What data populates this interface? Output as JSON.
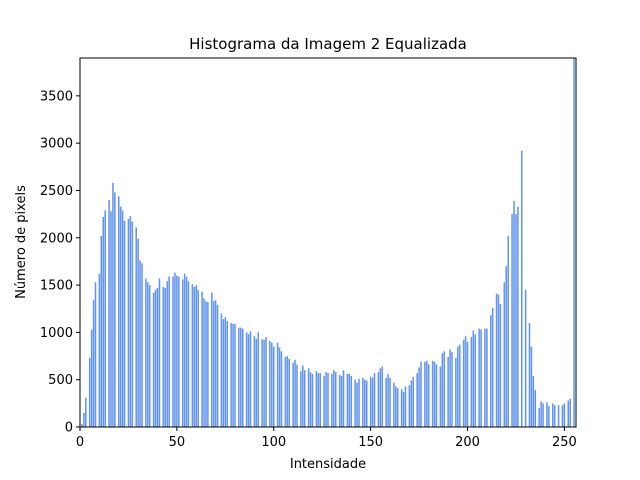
{
  "chart_data": {
    "type": "bar",
    "title": "Histograma da Imagem 2 Equalizada",
    "x_label": "Intensidade",
    "y_label": "Número de pixels",
    "color": "#6495ed",
    "x": [
      0,
      1,
      2,
      3,
      4,
      5,
      6,
      7,
      8,
      9,
      10,
      11,
      12,
      13,
      14,
      15,
      16,
      17,
      18,
      19,
      20,
      21,
      22,
      23,
      24,
      25,
      26,
      27,
      28,
      29,
      30,
      31,
      32,
      33,
      34,
      35,
      36,
      37,
      38,
      39,
      40,
      41,
      42,
      43,
      44,
      45,
      46,
      47,
      48,
      49,
      50,
      51,
      52,
      53,
      54,
      55,
      56,
      57,
      58,
      59,
      60,
      61,
      62,
      63,
      64,
      65,
      66,
      67,
      68,
      69,
      70,
      71,
      72,
      73,
      74,
      75,
      76,
      77,
      78,
      79,
      80,
      81,
      82,
      83,
      84,
      85,
      86,
      87,
      88,
      89,
      90,
      91,
      92,
      93,
      94,
      95,
      96,
      97,
      98,
      99,
      100,
      101,
      102,
      103,
      104,
      105,
      106,
      107,
      108,
      109,
      110,
      111,
      112,
      113,
      114,
      115,
      116,
      117,
      118,
      119,
      120,
      121,
      122,
      123,
      124,
      125,
      126,
      127,
      128,
      129,
      130,
      131,
      132,
      133,
      134,
      135,
      136,
      137,
      138,
      139,
      140,
      141,
      142,
      143,
      144,
      145,
      146,
      147,
      148,
      149,
      150,
      151,
      152,
      153,
      154,
      155,
      156,
      157,
      158,
      159,
      160,
      161,
      162,
      163,
      164,
      165,
      166,
      167,
      168,
      169,
      170,
      171,
      172,
      173,
      174,
      175,
      176,
      177,
      178,
      179,
      180,
      181,
      182,
      183,
      184,
      185,
      186,
      187,
      188,
      189,
      190,
      191,
      192,
      193,
      194,
      195,
      196,
      197,
      198,
      199,
      200,
      201,
      202,
      203,
      204,
      205,
      206,
      207,
      208,
      209,
      210,
      211,
      212,
      213,
      214,
      215,
      216,
      217,
      218,
      219,
      220,
      221,
      222,
      223,
      224,
      225,
      226,
      227,
      228,
      229,
      230,
      231,
      232,
      233,
      234,
      235,
      236,
      237,
      238,
      239,
      240,
      241,
      242,
      243,
      244,
      245,
      246,
      247,
      248,
      249,
      250,
      251,
      252,
      253,
      254,
      255
    ],
    "values": [
      0,
      30,
      150,
      310,
      0,
      730,
      1030,
      1340,
      1530,
      0,
      1620,
      2020,
      2220,
      2290,
      0,
      2400,
      2280,
      2580,
      2480,
      0,
      2440,
      2330,
      2290,
      2180,
      0,
      2200,
      2230,
      2170,
      0,
      2110,
      1990,
      1760,
      1730,
      0,
      1570,
      1530,
      1500,
      0,
      1420,
      1450,
      1470,
      1570,
      0,
      1480,
      1470,
      1540,
      1590,
      0,
      1590,
      1630,
      1600,
      1590,
      0,
      1560,
      1620,
      1590,
      1540,
      0,
      1510,
      1480,
      1500,
      1450,
      0,
      1430,
      1360,
      1330,
      1320,
      0,
      1420,
      1330,
      1340,
      1290,
      0,
      1200,
      1140,
      1160,
      1120,
      0,
      1100,
      1090,
      1090,
      0,
      1050,
      1050,
      1040,
      0,
      1000,
      980,
      1010,
      0,
      960,
      930,
      1000,
      0,
      930,
      920,
      950,
      0,
      910,
      890,
      850,
      0,
      890,
      840,
      800,
      0,
      740,
      750,
      720,
      0,
      680,
      710,
      660,
      0,
      590,
      650,
      600,
      0,
      620,
      580,
      560,
      0,
      590,
      570,
      570,
      0,
      540,
      580,
      570,
      0,
      560,
      600,
      580,
      0,
      550,
      540,
      600,
      0,
      560,
      560,
      540,
      0,
      500,
      470,
      510,
      0,
      520,
      500,
      490,
      0,
      530,
      520,
      570,
      0,
      580,
      620,
      640,
      0,
      520,
      560,
      520,
      0,
      470,
      430,
      410,
      0,
      400,
      370,
      430,
      0,
      440,
      490,
      530,
      0,
      570,
      630,
      690,
      0,
      690,
      700,
      660,
      0,
      700,
      690,
      660,
      0,
      640,
      780,
      800,
      0,
      740,
      820,
      790,
      0,
      730,
      850,
      870,
      0,
      920,
      960,
      900,
      0,
      950,
      1020,
      980,
      0,
      1040,
      1030,
      0,
      1040,
      1040,
      0,
      1180,
      1260,
      0,
      1410,
      1400,
      1300,
      0,
      1530,
      1700,
      2020,
      0,
      2250,
      2390,
      2250,
      2330,
      0,
      2920,
      0,
      1450,
      0,
      1100,
      850,
      540,
      390,
      0,
      200,
      270,
      250,
      0,
      260,
      220,
      0,
      250,
      230,
      0,
      230,
      0,
      230,
      250,
      0,
      280,
      300,
      0,
      3900
    ],
    "xlim": [
      0,
      256
    ],
    "xticks": [
      0,
      50,
      100,
      150,
      200,
      250
    ],
    "ylim": [
      0,
      3900
    ],
    "yticks": [
      0,
      500,
      1000,
      1500,
      2000,
      2500,
      3000,
      3500
    ]
  }
}
